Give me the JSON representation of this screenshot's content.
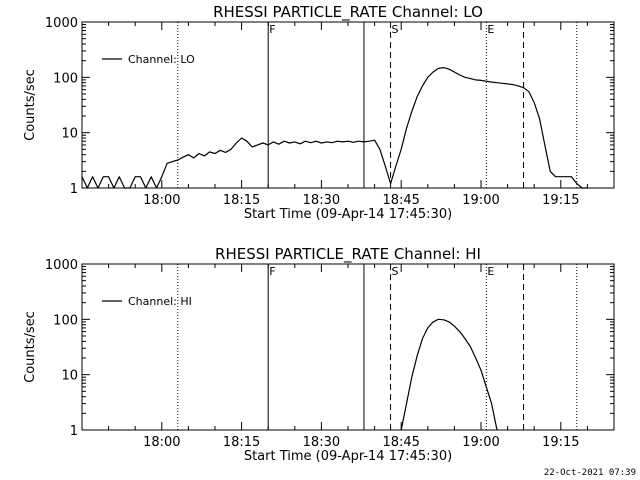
{
  "chart_data": [
    {
      "type": "line",
      "title": "RHESSI PARTICLE_RATE Channel: LO",
      "xlabel": "Start Time (09-Apr-14 17:45:30)",
      "ylabel": "Counts/sec",
      "yscale": "log",
      "ylim": [
        1,
        1000
      ],
      "yticks": [
        1,
        10,
        100,
        1000
      ],
      "ytick_labels": [
        "1",
        "10",
        "100",
        "1000"
      ],
      "xlim": [
        "17:45",
        "19:25"
      ],
      "xticks": [
        "18:00",
        "18:15",
        "18:30",
        "18:45",
        "19:00",
        "19:15"
      ],
      "grid": false,
      "legend_position": "top-left",
      "series": [
        {
          "name": "Channel: LO",
          "x": [
            "17:45",
            "17:46",
            "17:47",
            "17:48",
            "17:49",
            "17:50",
            "17:51",
            "17:52",
            "17:53",
            "17:54",
            "17:55",
            "17:56",
            "17:57",
            "17:58",
            "17:59",
            "18:00",
            "18:01",
            "18:02",
            "18:03",
            "18:04",
            "18:05",
            "18:06",
            "18:07",
            "18:08",
            "18:09",
            "18:10",
            "18:11",
            "18:12",
            "18:13",
            "18:14",
            "18:15",
            "18:16",
            "18:17",
            "18:18",
            "18:19",
            "18:20",
            "18:21",
            "18:22",
            "18:23",
            "18:24",
            "18:25",
            "18:26",
            "18:27",
            "18:28",
            "18:29",
            "18:30",
            "18:31",
            "18:32",
            "18:33",
            "18:34",
            "18:35",
            "18:36",
            "18:37",
            "18:38",
            "18:39",
            "18:40",
            "18:41",
            "18:42",
            "18:43",
            "18:44",
            "18:45",
            "18:46",
            "18:47",
            "18:48",
            "18:49",
            "18:50",
            "18:51",
            "18:52",
            "18:53",
            "18:54",
            "18:55",
            "18:56",
            "18:57",
            "18:58",
            "18:59",
            "19:00",
            "19:01",
            "19:02",
            "19:03",
            "19:04",
            "19:05",
            "19:06",
            "19:07",
            "19:08",
            "19:09",
            "19:10",
            "19:11",
            "19:12",
            "19:13",
            "19:14",
            "19:15",
            "19:16",
            "19:17",
            "19:18",
            "19:19",
            "19:20"
          ],
          "values": [
            1.6,
            1,
            1.6,
            1,
            1.6,
            1.6,
            1,
            1.6,
            1,
            1,
            1.6,
            1.6,
            1,
            1.6,
            1,
            1.6,
            2.8,
            3,
            3.2,
            3.6,
            4,
            3.5,
            4.2,
            3.8,
            4.5,
            4.2,
            4.8,
            4.4,
            5,
            6.5,
            8,
            7,
            5.5,
            6,
            6.5,
            6,
            6.8,
            6.2,
            7,
            6.5,
            6.8,
            6.3,
            7,
            6.6,
            7,
            6.5,
            6.8,
            6.6,
            7,
            6.8,
            7,
            6.7,
            7,
            6.8,
            7,
            7.3,
            5,
            2.5,
            1.2,
            2.5,
            5,
            12,
            24,
            45,
            70,
            100,
            125,
            145,
            150,
            140,
            125,
            110,
            100,
            95,
            90,
            88,
            85,
            82,
            80,
            78,
            76,
            74,
            70,
            65,
            55,
            35,
            18,
            6,
            2,
            1.6,
            1.6,
            1.6,
            1.6,
            1.2,
            1,
            1
          ]
        }
      ],
      "vlines": [
        {
          "x": "18:03",
          "style": "dotted"
        },
        {
          "x": "18:20",
          "style": "solid",
          "label": "F"
        },
        {
          "x": "18:38",
          "style": "solid"
        },
        {
          "x": "18:43",
          "style": "dashed",
          "label": "S"
        },
        {
          "x": "19:01",
          "style": "dotted",
          "label": "E"
        },
        {
          "x": "19:08",
          "style": "dashed"
        },
        {
          "x": "19:18",
          "style": "dotted"
        }
      ]
    },
    {
      "type": "line",
      "title": "RHESSI PARTICLE_RATE Channel: HI",
      "xlabel": "Start Time (09-Apr-14 17:45:30)",
      "ylabel": "Counts/sec",
      "yscale": "log",
      "ylim": [
        1,
        1000
      ],
      "yticks": [
        1,
        10,
        100,
        1000
      ],
      "ytick_labels": [
        "1",
        "10",
        "100",
        "1000"
      ],
      "xlim": [
        "17:45",
        "19:25"
      ],
      "xticks": [
        "18:00",
        "18:15",
        "18:30",
        "18:45",
        "19:00",
        "19:15"
      ],
      "grid": false,
      "legend_position": "top-left",
      "series": [
        {
          "name": "Channel: HI",
          "x": [
            "18:45",
            "18:46",
            "18:47",
            "18:48",
            "18:49",
            "18:50",
            "18:51",
            "18:52",
            "18:53",
            "18:54",
            "18:55",
            "18:56",
            "18:57",
            "18:58",
            "18:59",
            "19:00",
            "19:01",
            "19:02",
            "19:03"
          ],
          "values": [
            1,
            3,
            9,
            22,
            45,
            70,
            90,
            100,
            98,
            90,
            75,
            60,
            45,
            32,
            20,
            12,
            6,
            3,
            1
          ]
        }
      ],
      "vlines": [
        {
          "x": "18:03",
          "style": "dotted"
        },
        {
          "x": "18:20",
          "style": "solid",
          "label": "F"
        },
        {
          "x": "18:38",
          "style": "solid"
        },
        {
          "x": "18:43",
          "style": "dashed",
          "label": "S"
        },
        {
          "x": "19:01",
          "style": "dotted",
          "label": "E"
        },
        {
          "x": "19:08",
          "style": "dashed"
        },
        {
          "x": "19:18",
          "style": "dotted"
        }
      ]
    }
  ],
  "footer": {
    "timestamp": "22-Oct-2021 07:39"
  }
}
